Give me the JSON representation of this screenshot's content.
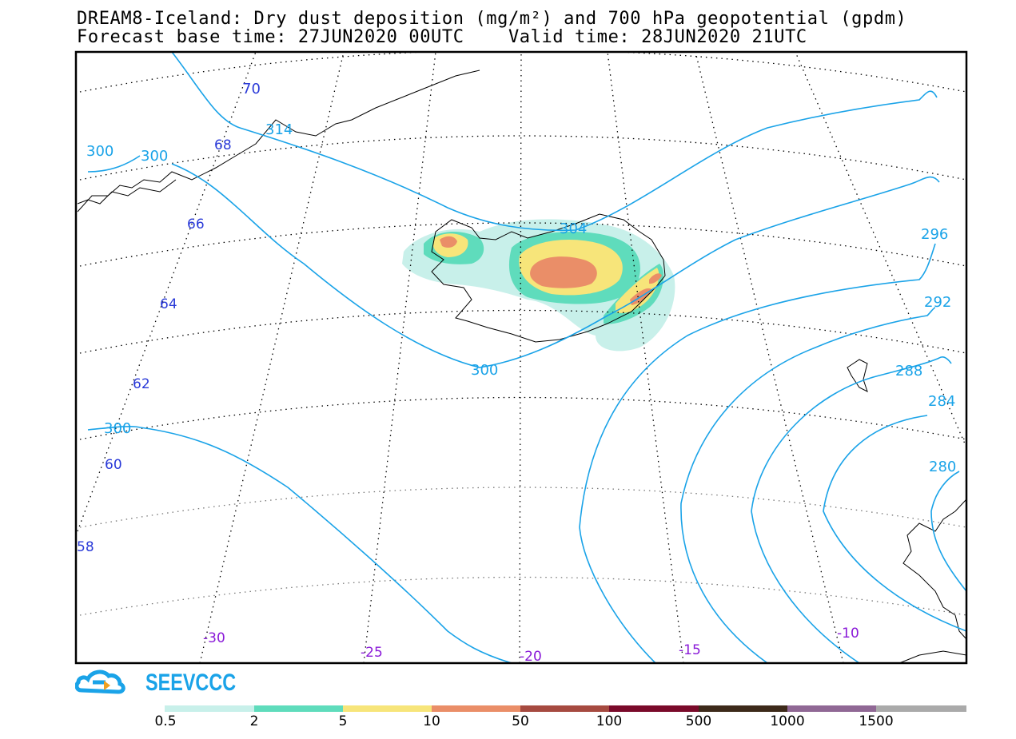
{
  "title": {
    "line1": "DREAM8-Iceland: Dry dust deposition (mg/m²) and 700 hPa geopotential (gpdm)",
    "line2": "Forecast base time: 27JUN2020 00UTC    Valid time: 28JUN2020 21UTC"
  },
  "geopotential_labels": [
    "70",
    "314",
    "300",
    "300",
    "304",
    "300",
    "300",
    "296",
    "292",
    "288",
    "284",
    "280"
  ],
  "latitude_labels": [
    "68",
    "66",
    "64",
    "62",
    "60",
    "58"
  ],
  "longitude_labels": [
    "-30",
    "-25",
    "-20",
    "-15",
    "-10"
  ],
  "logo": {
    "text": "SEEVCCC"
  },
  "legend": {
    "labels": [
      "0.5",
      "2",
      "5",
      "10",
      "50",
      "100",
      "500",
      "1000",
      "1500"
    ],
    "colors": [
      "#c8f0ea",
      "#5fdcbc",
      "#f7e57a",
      "#ea8e68",
      "#a64a40",
      "#7a0a2a",
      "#3d2a1a",
      "#906895",
      "#aaaaaa"
    ]
  },
  "colors": {
    "contour": "#1aa3e8",
    "lat_label": "#2a3ad8",
    "lon_label": "#8a1ad8",
    "logo": "#1aa3e8"
  }
}
